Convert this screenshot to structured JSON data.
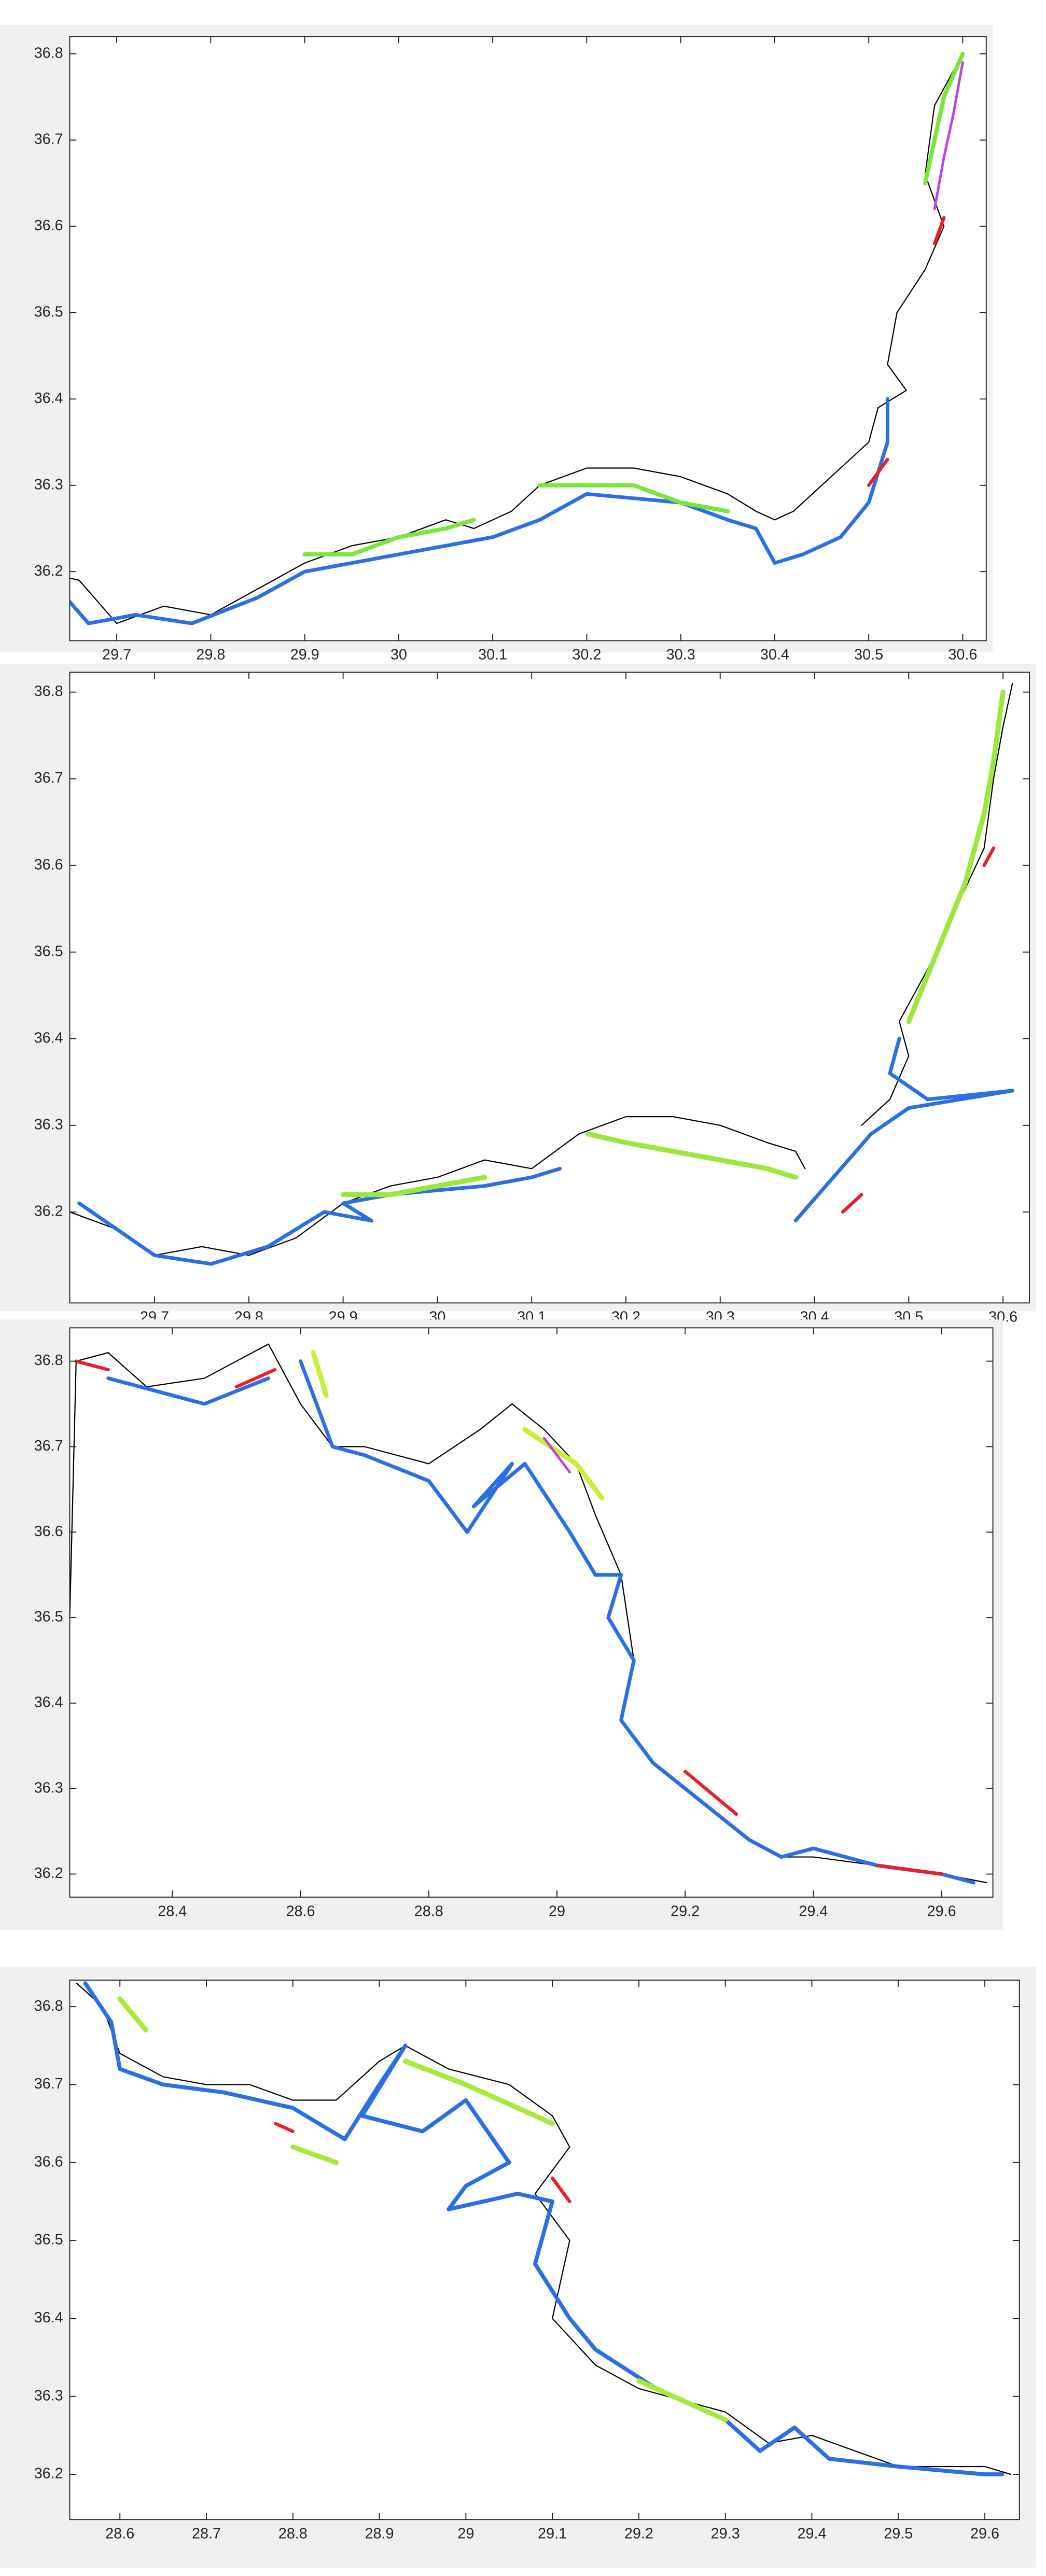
{
  "chart_data": [
    {
      "type": "line",
      "xlim": [
        29.65,
        30.625
      ],
      "ylim": [
        36.12,
        36.82
      ],
      "xticks": [
        29.7,
        29.8,
        29.9,
        30,
        30.1,
        30.2,
        30.3,
        30.4,
        30.5,
        30.6
      ],
      "yticks": [
        36.2,
        36.3,
        36.4,
        36.5,
        36.6,
        36.7,
        36.8
      ],
      "series": [
        {
          "color": "#000000",
          "linewidth": 0.7,
          "x": [
            29.62,
            29.66,
            29.7,
            29.75,
            29.8,
            29.85,
            29.9,
            29.95,
            30.0,
            30.05,
            30.08,
            30.12,
            30.15,
            30.2,
            30.25,
            30.3,
            30.35,
            30.38,
            30.4,
            30.42,
            30.45,
            30.5,
            30.51,
            30.54,
            30.52,
            30.53,
            30.56,
            30.58,
            30.56,
            30.57,
            30.6
          ],
          "y": [
            36.2,
            36.19,
            36.14,
            36.16,
            36.15,
            36.18,
            36.21,
            36.23,
            36.24,
            36.26,
            36.25,
            36.27,
            36.3,
            36.32,
            36.32,
            36.31,
            36.29,
            36.27,
            36.26,
            36.27,
            36.3,
            36.35,
            36.39,
            36.41,
            36.44,
            36.5,
            36.55,
            36.6,
            36.66,
            36.74,
            36.8
          ]
        },
        {
          "color": "#2a6fe6",
          "linewidth": 2.2,
          "x": [
            29.63,
            29.67,
            29.72,
            29.78,
            29.85,
            29.9,
            29.95,
            30.0,
            30.05,
            30.1,
            30.15,
            30.2,
            30.3,
            30.35,
            30.38,
            30.4,
            30.43,
            30.47,
            30.5,
            30.52,
            30.52
          ],
          "y": [
            36.19,
            36.14,
            36.15,
            36.14,
            36.17,
            36.2,
            36.21,
            36.22,
            36.23,
            36.24,
            36.26,
            36.29,
            36.28,
            36.26,
            36.25,
            36.21,
            36.22,
            36.24,
            36.28,
            36.35,
            36.4
          ]
        },
        {
          "color": "#78e63a",
          "linewidth": 2.5,
          "x": [
            29.9,
            29.95,
            30.0,
            30.05,
            30.08,
            null,
            30.15,
            30.2,
            30.25,
            30.3,
            30.35,
            null,
            30.56,
            30.57,
            30.58,
            30.6
          ],
          "y": [
            36.22,
            36.22,
            36.24,
            36.25,
            36.26,
            null,
            36.3,
            36.3,
            36.3,
            36.28,
            36.27,
            null,
            36.65,
            36.7,
            36.75,
            36.8
          ]
        },
        {
          "color": "#c040e0",
          "linewidth": 1.5,
          "x": [
            30.57,
            30.58,
            30.59,
            30.6
          ],
          "y": [
            36.62,
            36.68,
            36.73,
            36.79
          ]
        },
        {
          "color": "#e8202a",
          "linewidth": 2,
          "x": [
            30.5,
            30.52,
            null,
            30.57,
            30.58
          ],
          "y": [
            36.3,
            36.33,
            null,
            36.58,
            36.61
          ]
        }
      ]
    },
    {
      "type": "line",
      "xlim": [
        29.61,
        30.628
      ],
      "ylim": [
        36.095,
        36.823
      ],
      "xticks": [
        29.7,
        29.8,
        29.9,
        30,
        30.1,
        30.2,
        30.3,
        30.4,
        30.5,
        30.6
      ],
      "yticks": [
        36.2,
        36.3,
        36.4,
        36.5,
        36.6,
        36.7,
        36.8
      ],
      "series": [
        {
          "color": "#000000",
          "linewidth": 0.7,
          "x": [
            29.61,
            29.66,
            29.7,
            29.75,
            29.8,
            29.85,
            29.9,
            29.95,
            30.0,
            30.05,
            30.1,
            30.15,
            30.2,
            30.25,
            30.3,
            30.35,
            30.38,
            30.39,
            null,
            30.45,
            30.48,
            30.5,
            30.49,
            30.52,
            30.55,
            30.58,
            30.59,
            30.6,
            30.61
          ],
          "y": [
            36.2,
            36.18,
            36.15,
            36.16,
            36.15,
            36.17,
            36.21,
            36.23,
            36.24,
            36.26,
            36.25,
            36.29,
            36.31,
            36.31,
            36.3,
            36.28,
            36.27,
            36.25,
            null,
            36.3,
            36.33,
            36.38,
            36.42,
            36.48,
            36.55,
            36.62,
            36.7,
            36.76,
            36.81
          ]
        },
        {
          "color": "#2a6fe6",
          "linewidth": 2.2,
          "x": [
            29.62,
            29.66,
            29.7,
            29.76,
            29.82,
            29.88,
            29.93,
            29.9,
            29.95,
            30.05,
            30.1,
            30.13,
            null,
            30.38,
            30.42,
            30.46,
            30.5,
            30.61,
            30.52,
            30.48,
            30.49
          ],
          "y": [
            36.21,
            36.18,
            36.15,
            36.14,
            36.16,
            36.2,
            36.19,
            36.21,
            36.22,
            36.23,
            36.24,
            36.25,
            null,
            36.19,
            36.24,
            36.29,
            36.32,
            36.34,
            36.33,
            36.36,
            36.4
          ]
        },
        {
          "color": "#9be83a",
          "linewidth": 3,
          "x": [
            29.9,
            29.95,
            30.0,
            30.05,
            null,
            30.16,
            30.2,
            30.25,
            30.3,
            30.35,
            30.38,
            null,
            30.5,
            30.53,
            30.56,
            30.58,
            30.59,
            30.6
          ],
          "y": [
            36.22,
            36.22,
            36.23,
            36.24,
            null,
            36.29,
            36.28,
            36.27,
            36.26,
            36.25,
            36.24,
            null,
            36.42,
            36.5,
            36.58,
            36.66,
            36.72,
            36.8
          ]
        },
        {
          "color": "#e8202a",
          "linewidth": 2,
          "x": [
            30.58,
            30.59,
            null,
            30.43,
            30.45
          ],
          "y": [
            36.6,
            36.62,
            null,
            36.2,
            36.22
          ]
        }
      ]
    },
    {
      "type": "line",
      "xlim": [
        28.24,
        29.68
      ],
      "ylim": [
        36.173,
        36.839
      ],
      "xticks": [
        28.4,
        28.6,
        28.8,
        29,
        29.2,
        29.4,
        29.6
      ],
      "yticks": [
        36.2,
        36.3,
        36.4,
        36.5,
        36.6,
        36.7,
        36.8
      ],
      "series": [
        {
          "color": "#000000",
          "linewidth": 0.7,
          "x": [
            28.24,
            28.25,
            28.3,
            28.36,
            28.45,
            28.55,
            28.6,
            28.65,
            28.7,
            28.8,
            28.88,
            28.93,
            28.98,
            29.03,
            29.06,
            29.1,
            29.12,
            29.1,
            29.15,
            29.2,
            29.3,
            29.35,
            29.4,
            29.5,
            29.6,
            29.67
          ],
          "y": [
            36.5,
            36.8,
            36.81,
            36.77,
            36.78,
            36.82,
            36.75,
            36.7,
            36.7,
            36.68,
            36.72,
            36.75,
            36.72,
            36.68,
            36.62,
            36.55,
            36.45,
            36.38,
            36.33,
            36.3,
            36.24,
            36.22,
            36.22,
            36.21,
            36.2,
            36.19
          ]
        },
        {
          "color": "#2a6fe6",
          "linewidth": 2.2,
          "x": [
            28.3,
            28.45,
            28.55,
            null,
            28.6,
            28.65,
            28.7,
            28.8,
            28.86,
            28.93,
            28.87,
            28.95,
            29.02,
            29.06,
            29.1,
            29.08,
            29.12,
            29.1,
            29.15,
            29.2,
            29.3,
            29.35,
            29.4,
            29.5,
            29.6,
            29.65
          ],
          "y": [
            36.78,
            36.75,
            36.78,
            null,
            36.8,
            36.7,
            36.69,
            36.66,
            36.6,
            36.68,
            36.63,
            36.68,
            36.6,
            36.55,
            36.55,
            36.5,
            36.45,
            36.38,
            36.33,
            36.3,
            36.24,
            36.22,
            36.23,
            36.21,
            36.2,
            36.19
          ]
        },
        {
          "color": "#e8202a",
          "linewidth": 2,
          "x": [
            28.25,
            28.3,
            null,
            28.5,
            28.56,
            null,
            29.2,
            29.28,
            null,
            29.5,
            29.6
          ],
          "y": [
            36.8,
            36.79,
            null,
            36.77,
            36.79,
            null,
            36.32,
            36.27,
            null,
            36.21,
            36.2
          ]
        },
        {
          "color": "#c8f03a",
          "linewidth": 3,
          "x": [
            28.95,
            29.03,
            29.07,
            null,
            28.62,
            28.64
          ],
          "y": [
            36.72,
            36.68,
            36.64,
            null,
            36.81,
            36.76
          ]
        },
        {
          "color": "#c040e0",
          "linewidth": 1.5,
          "x": [
            28.98,
            29.02
          ],
          "y": [
            36.71,
            36.67
          ]
        }
      ]
    },
    {
      "type": "line",
      "xlim": [
        28.542,
        29.64
      ],
      "ylim": [
        36.142,
        36.834
      ],
      "xticks": [
        28.6,
        28.7,
        28.8,
        28.9,
        29,
        29.1,
        29.2,
        29.3,
        29.4,
        29.5,
        29.6
      ],
      "yticks": [
        36.2,
        36.3,
        36.4,
        36.5,
        36.6,
        36.7,
        36.8
      ],
      "series": [
        {
          "color": "#000000",
          "linewidth": 0.7,
          "x": [
            28.55,
            28.58,
            28.6,
            28.65,
            28.7,
            28.75,
            28.8,
            28.85,
            28.9,
            28.93,
            28.98,
            29.05,
            29.1,
            29.12,
            29.08,
            29.12,
            29.1,
            29.15,
            29.2,
            29.3,
            29.35,
            29.4,
            29.5,
            29.6,
            29.63
          ],
          "y": [
            36.83,
            36.8,
            36.74,
            36.71,
            36.7,
            36.7,
            36.68,
            36.68,
            36.73,
            36.75,
            36.72,
            36.7,
            36.66,
            36.62,
            36.56,
            36.5,
            36.4,
            36.34,
            36.31,
            36.28,
            36.24,
            36.25,
            36.21,
            36.21,
            36.2
          ]
        },
        {
          "color": "#2a6fe6",
          "linewidth": 2.4,
          "x": [
            28.56,
            28.59,
            28.6,
            28.65,
            28.72,
            28.8,
            28.86,
            28.9,
            28.93,
            28.88,
            28.95,
            29.0,
            29.05,
            29.0,
            28.98,
            29.06,
            29.1,
            29.08,
            29.12,
            29.15,
            29.22,
            29.3,
            29.34,
            29.38,
            29.42,
            29.5,
            29.6,
            29.62
          ],
          "y": [
            36.83,
            36.78,
            36.72,
            36.7,
            36.69,
            36.67,
            36.63,
            36.7,
            36.75,
            36.66,
            36.64,
            36.68,
            36.6,
            36.57,
            36.54,
            36.56,
            36.55,
            36.47,
            36.4,
            36.36,
            36.31,
            36.27,
            36.23,
            36.26,
            36.22,
            36.21,
            36.2,
            36.2
          ]
        },
        {
          "color": "#a8ea3a",
          "linewidth": 3,
          "x": [
            28.6,
            28.63,
            null,
            28.8,
            28.85,
            null,
            28.93,
            29.0,
            29.1,
            null,
            29.2,
            29.3
          ],
          "y": [
            36.81,
            36.77,
            null,
            36.62,
            36.6,
            null,
            36.73,
            36.7,
            36.65,
            null,
            36.32,
            36.27
          ]
        },
        {
          "color": "#e8202a",
          "linewidth": 2,
          "x": [
            28.78,
            28.8,
            null,
            29.1,
            29.12
          ],
          "y": [
            36.65,
            36.64,
            null,
            36.58,
            36.55
          ]
        }
      ]
    }
  ]
}
